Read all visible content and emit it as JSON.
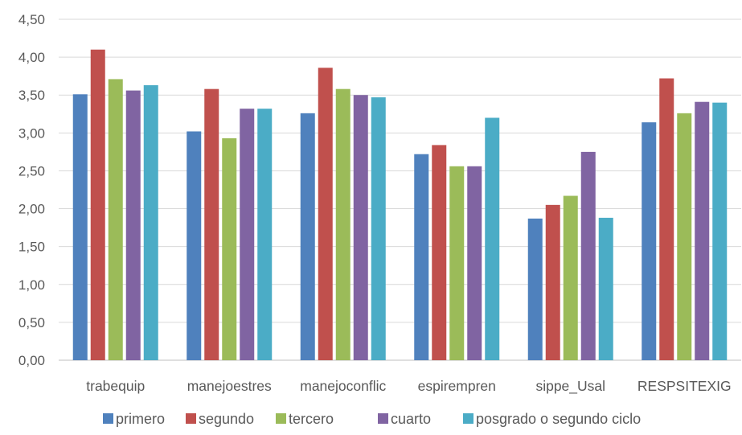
{
  "chart_data": {
    "type": "bar",
    "title": "",
    "xlabel": "",
    "ylabel": "",
    "categories": [
      "trabequip",
      "manejoestres",
      "manejoconflic",
      "espirempren",
      "sippe_Usal",
      "RESPSITEXIG"
    ],
    "ylim": [
      0,
      4.5
    ],
    "yticks": [
      0,
      0.5,
      1,
      1.5,
      2,
      2.5,
      3,
      3.5,
      4,
      4.5
    ],
    "ytick_labels": [
      "0,00",
      "0,50",
      "1,00",
      "1,50",
      "2,00",
      "2,50",
      "3,00",
      "3,50",
      "4,00",
      "4,50"
    ],
    "grid": true,
    "legend_position": "bottom",
    "series": [
      {
        "name": "primero",
        "color": "#4f81bd",
        "values": [
          3.51,
          3.02,
          3.26,
          2.72,
          1.87,
          3.14
        ]
      },
      {
        "name": "segundo",
        "color": "#c0504d",
        "values": [
          4.1,
          3.58,
          3.86,
          2.84,
          2.05,
          3.72
        ]
      },
      {
        "name": "tercero",
        "color": "#9bbb59",
        "values": [
          3.71,
          2.93,
          3.58,
          2.56,
          2.17,
          3.26
        ]
      },
      {
        "name": "cuarto",
        "color": "#8064a2",
        "values": [
          3.56,
          3.32,
          3.5,
          2.56,
          2.75,
          3.41
        ]
      },
      {
        "name": "posgrado o segundo ciclo",
        "color": "#4bacc6",
        "values": [
          3.63,
          3.32,
          3.47,
          3.2,
          1.88,
          3.4
        ]
      }
    ]
  }
}
